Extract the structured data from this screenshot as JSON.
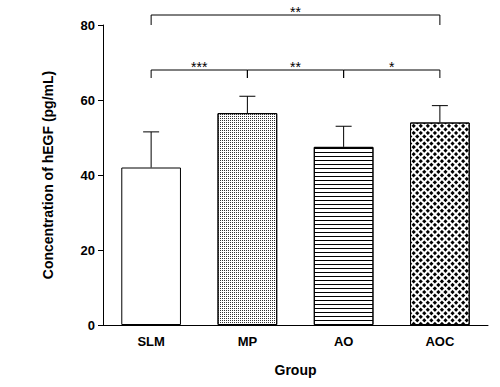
{
  "chart_data": {
    "type": "bar",
    "categories": [
      "SLM",
      "MP",
      "AO",
      "AOC"
    ],
    "values": [
      42,
      56.5,
      47.5,
      54
    ],
    "errors": [
      9.5,
      4.5,
      5.5,
      4.5
    ],
    "color": "#000000",
    "xlabel": "Group",
    "ylabel": "Concentration of hEGF (pg/mL)",
    "ylim": [
      0,
      80
    ],
    "yticks": [
      0,
      20,
      40,
      60,
      80
    ],
    "grid": false,
    "annotations": [
      {
        "from": "SLM",
        "to": "MP",
        "label": "***"
      },
      {
        "from": "MP",
        "to": "AO",
        "label": "**"
      },
      {
        "from": "AO",
        "to": "AOC",
        "label": "*"
      },
      {
        "from": "SLM",
        "to": "AOC",
        "label": "**"
      }
    ]
  }
}
